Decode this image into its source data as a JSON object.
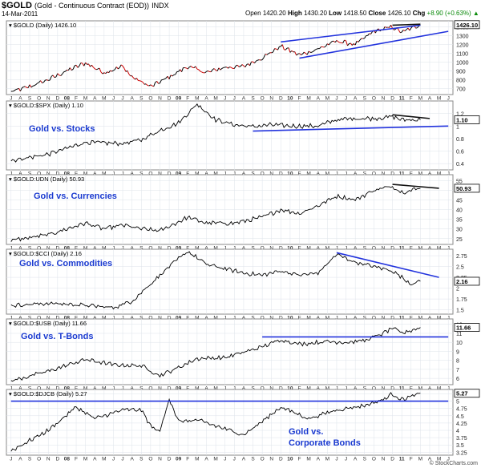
{
  "header": {
    "symbol": "$GOLD",
    "description": "(Gold - Continuous Contract (EOD))",
    "exchange": "INDX",
    "date": "14-Mar-2011",
    "open_label": "Open",
    "open": "1420.20",
    "high_label": "High",
    "high": "1430.20",
    "low_label": "Low",
    "low": "1418.50",
    "close_label": "Close",
    "close": "1426.10",
    "chg_label": "Chg",
    "chg": "+8.90 (+0.63%)",
    "chg_arrow": "▲",
    "brand": "© StockCharts.com",
    "chg_color": "#0a8a0a"
  },
  "colors": {
    "trendline": "#2233dd",
    "annotation": "#1a3ad0",
    "gold_up": "#000000",
    "gold_down": "#cc0000",
    "grid": "#dde3ea"
  },
  "x_axis": {
    "start": "2007-07",
    "end": "2011-06",
    "tick_labels": [
      "J",
      "A",
      "S",
      "O",
      "N",
      "D",
      "08",
      "F",
      "M",
      "A",
      "M",
      "J",
      "J",
      "A",
      "S",
      "O",
      "N",
      "D",
      "09",
      "F",
      "M",
      "A",
      "M",
      "J",
      "J",
      "A",
      "S",
      "O",
      "N",
      "D",
      "10",
      "F",
      "M",
      "A",
      "M",
      "J",
      "J",
      "A",
      "S",
      "O",
      "N",
      "D",
      "11",
      "F",
      "M",
      "A",
      "M",
      "J"
    ],
    "bold_labels": [
      "08",
      "09",
      "10",
      "11"
    ]
  },
  "chart_data": [
    {
      "type": "ohlc",
      "legend": "$GOLD (Daily) 1426.10",
      "annotation": "",
      "last_value": "1426.10",
      "y_ticks": [
        700,
        800,
        900,
        1000,
        1100,
        1200,
        1300,
        1400
      ],
      "ylim": [
        630,
        1470
      ],
      "keypoints": [
        [
          "2007-07",
          660
        ],
        [
          "2007-09",
          720
        ],
        [
          "2007-11",
          800
        ],
        [
          "2008-01",
          900
        ],
        [
          "2008-03",
          990
        ],
        [
          "2008-05",
          880
        ],
        [
          "2008-07",
          950
        ],
        [
          "2008-08",
          830
        ],
        [
          "2008-10",
          720
        ],
        [
          "2008-12",
          830
        ],
        [
          "2009-02",
          950
        ],
        [
          "2009-04",
          880
        ],
        [
          "2009-06",
          940
        ],
        [
          "2009-08",
          950
        ],
        [
          "2009-10",
          1050
        ],
        [
          "2009-12",
          1180
        ],
        [
          "2010-02",
          1080
        ],
        [
          "2010-04",
          1150
        ],
        [
          "2010-06",
          1240
        ],
        [
          "2010-08",
          1200
        ],
        [
          "2010-10",
          1350
        ],
        [
          "2010-12",
          1400
        ],
        [
          "2011-01",
          1340
        ],
        [
          "2011-03",
          1426
        ]
      ],
      "trendlines": [
        [
          [
            "2009-12",
            1230
          ],
          [
            "2011-03",
            1420
          ]
        ],
        [
          [
            "2010-02",
            1045
          ],
          [
            "2011-06",
            1350
          ]
        ],
        [
          [
            "2010-12",
            1420
          ],
          [
            "2011-03",
            1432
          ]
        ]
      ]
    },
    {
      "type": "line",
      "legend": "$GOLD:$SPX (Daily) 1.10",
      "annotation": "Gold vs. Stocks",
      "last_value": "1.10",
      "y_ticks": [
        0.4,
        0.6,
        0.8,
        1.0,
        1.2
      ],
      "ylim": [
        0.3,
        1.4
      ],
      "keypoints": [
        [
          "2007-07",
          0.45
        ],
        [
          "2007-11",
          0.55
        ],
        [
          "2008-03",
          0.74
        ],
        [
          "2008-07",
          0.72
        ],
        [
          "2008-09",
          0.78
        ],
        [
          "2008-11",
          0.93
        ],
        [
          "2009-01",
          1.05
        ],
        [
          "2009-03",
          1.35
        ],
        [
          "2009-05",
          1.1
        ],
        [
          "2009-07",
          1.02
        ],
        [
          "2009-09",
          0.99
        ],
        [
          "2009-11",
          1.02
        ],
        [
          "2010-01",
          1.0
        ],
        [
          "2010-04",
          1.0
        ],
        [
          "2010-06",
          1.1
        ],
        [
          "2010-08",
          1.12
        ],
        [
          "2010-10",
          1.12
        ],
        [
          "2010-12",
          1.15
        ],
        [
          "2011-01",
          1.1
        ],
        [
          "2011-03",
          1.1
        ]
      ],
      "trendlines": [
        [
          [
            "2009-09",
            0.92
          ],
          [
            "2011-06",
            1.0
          ]
        ],
        [
          [
            "2010-12",
            1.18
          ],
          [
            "2011-04",
            1.12
          ]
        ]
      ]
    },
    {
      "type": "line",
      "legend": "$GOLD:UDN (Daily) 50.93",
      "annotation": "Gold vs. Currencies",
      "last_value": "50.93",
      "y_ticks": [
        25,
        30,
        35,
        40,
        45,
        50,
        55
      ],
      "ylim": [
        22,
        58
      ],
      "keypoints": [
        [
          "2007-07",
          24
        ],
        [
          "2007-11",
          27
        ],
        [
          "2008-03",
          33
        ],
        [
          "2008-05",
          30
        ],
        [
          "2008-07",
          32
        ],
        [
          "2008-09",
          30
        ],
        [
          "2008-11",
          29
        ],
        [
          "2009-02",
          36
        ],
        [
          "2009-04",
          33
        ],
        [
          "2009-07",
          33
        ],
        [
          "2009-10",
          36
        ],
        [
          "2009-12",
          40
        ],
        [
          "2010-02",
          38
        ],
        [
          "2010-04",
          42
        ],
        [
          "2010-06",
          47
        ],
        [
          "2010-08",
          45
        ],
        [
          "2010-10",
          50
        ],
        [
          "2010-12",
          52
        ],
        [
          "2011-01",
          49
        ],
        [
          "2011-03",
          51
        ]
      ],
      "trendlines": [
        [
          [
            "2010-12",
            53
          ],
          [
            "2011-05",
            51
          ]
        ]
      ]
    },
    {
      "type": "line",
      "legend": "$GOLD:$CCI (Daily) 2.16",
      "annotation": "Gold vs. Commodities",
      "last_value": "2.16",
      "y_ticks": [
        1.5,
        1.75,
        2.0,
        2.25,
        2.5,
        2.75
      ],
      "ylim": [
        1.4,
        2.9
      ],
      "keypoints": [
        [
          "2007-07",
          1.6
        ],
        [
          "2007-11",
          1.65
        ],
        [
          "2008-02",
          1.62
        ],
        [
          "2008-06",
          1.55
        ],
        [
          "2008-08",
          1.7
        ],
        [
          "2008-10",
          2.1
        ],
        [
          "2008-12",
          2.5
        ],
        [
          "2009-02",
          2.85
        ],
        [
          "2009-04",
          2.55
        ],
        [
          "2009-06",
          2.45
        ],
        [
          "2009-08",
          2.35
        ],
        [
          "2009-10",
          2.3
        ],
        [
          "2009-12",
          2.4
        ],
        [
          "2010-02",
          2.3
        ],
        [
          "2010-04",
          2.35
        ],
        [
          "2010-06",
          2.78
        ],
        [
          "2010-08",
          2.6
        ],
        [
          "2010-10",
          2.5
        ],
        [
          "2010-12",
          2.4
        ],
        [
          "2011-02",
          2.1
        ],
        [
          "2011-03",
          2.16
        ]
      ],
      "trendlines": [
        [
          [
            "2010-06",
            2.82
          ],
          [
            "2011-05",
            2.25
          ]
        ]
      ]
    },
    {
      "type": "line",
      "legend": "$GOLD:$USB (Daily) 11.66",
      "annotation": "Gold vs. T-Bonds",
      "last_value": "11.66",
      "y_ticks": [
        6,
        7,
        8,
        9,
        10,
        11,
        12
      ],
      "ylim": [
        5.3,
        12.6
      ],
      "keypoints": [
        [
          "2007-07",
          5.7
        ],
        [
          "2007-11",
          6.8
        ],
        [
          "2008-03",
          8.1
        ],
        [
          "2008-06",
          7.5
        ],
        [
          "2008-09",
          7.4
        ],
        [
          "2008-11",
          6.3
        ],
        [
          "2009-01",
          7.2
        ],
        [
          "2009-03",
          8.2
        ],
        [
          "2009-06",
          8.3
        ],
        [
          "2009-08",
          8.9
        ],
        [
          "2009-10",
          9.5
        ],
        [
          "2009-12",
          10.3
        ],
        [
          "2010-02",
          9.8
        ],
        [
          "2010-05",
          10.1
        ],
        [
          "2010-07",
          10.0
        ],
        [
          "2010-09",
          10.2
        ],
        [
          "2010-11",
          11.0
        ],
        [
          "2010-12",
          11.6
        ],
        [
          "2011-01",
          11.0
        ],
        [
          "2011-03",
          11.66
        ]
      ],
      "trendlines": [
        [
          [
            "2009-10",
            10.6
          ],
          [
            "2011-06",
            10.6
          ]
        ]
      ]
    },
    {
      "type": "line",
      "legend": "$GOLD:$DJCB (Daily) 5.27",
      "annotation_lines": [
        "Gold vs.",
        "Corporate Bonds"
      ],
      "last_value": "5.27",
      "y_ticks": [
        3.25,
        3.5,
        3.75,
        4.0,
        4.25,
        4.5,
        4.75,
        5.0,
        5.25
      ],
      "ylim": [
        3.15,
        5.4
      ],
      "keypoints": [
        [
          "2007-07",
          3.3
        ],
        [
          "2007-11",
          4.0
        ],
        [
          "2008-02",
          4.8
        ],
        [
          "2008-04",
          4.4
        ],
        [
          "2008-07",
          4.7
        ],
        [
          "2008-09",
          4.7
        ],
        [
          "2008-10",
          4.15
        ],
        [
          "2008-11",
          3.95
        ],
        [
          "2008-12",
          5.1
        ],
        [
          "2009-01",
          4.3
        ],
        [
          "2009-03",
          4.35
        ],
        [
          "2009-06",
          4.05
        ],
        [
          "2009-08",
          3.85
        ],
        [
          "2009-10",
          4.3
        ],
        [
          "2009-12",
          4.8
        ],
        [
          "2010-03",
          4.4
        ],
        [
          "2010-06",
          4.7
        ],
        [
          "2010-09",
          4.85
        ],
        [
          "2010-11",
          5.05
        ],
        [
          "2010-12",
          5.25
        ],
        [
          "2011-01",
          5.05
        ],
        [
          "2011-03",
          5.27
        ]
      ],
      "trendlines": [
        [
          [
            "2007-07",
            5.0
          ],
          [
            "2011-06",
            5.0
          ]
        ]
      ]
    }
  ]
}
